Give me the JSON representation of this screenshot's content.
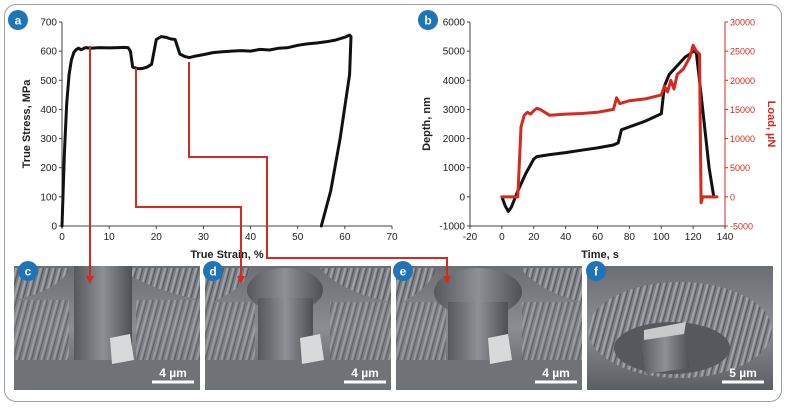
{
  "panels": {
    "a": {
      "label": "a"
    },
    "b": {
      "label": "b"
    },
    "c": {
      "label": "c",
      "scale_bar": "4 µm"
    },
    "d": {
      "label": "d",
      "scale_bar": "4 µm"
    },
    "e": {
      "label": "e",
      "scale_bar": "4 µm"
    },
    "f": {
      "label": "f",
      "scale_bar": "5 µm"
    }
  },
  "colors": {
    "badge": "#1f73b7",
    "load": "#d42a1f",
    "depth": "#111111",
    "arrow": "#d42a1f"
  },
  "chart_data": [
    {
      "type": "line",
      "panel": "a",
      "xlabel": "True Strain, %",
      "ylabel": "True Stress, MPa",
      "xlim": [
        0,
        70
      ],
      "ylim": [
        0,
        700
      ],
      "xticks": [
        0,
        10,
        20,
        30,
        40,
        50,
        60,
        70
      ],
      "yticks": [
        0,
        100,
        200,
        300,
        400,
        500,
        600,
        700
      ],
      "grid": false,
      "series": [
        {
          "color": "#111111",
          "x": [
            0,
            0.5,
            1,
            1.5,
            2,
            2.5,
            3,
            3.5,
            4,
            5,
            6,
            8,
            10,
            12,
            13,
            14,
            14.5,
            15,
            16,
            17,
            18,
            19,
            20,
            21,
            22,
            23,
            24,
            25,
            26,
            27,
            28,
            30,
            32,
            34,
            36,
            38,
            40,
            42,
            44,
            46,
            48,
            50,
            52,
            54,
            56,
            58,
            60,
            61,
            61.3,
            61,
            59,
            57,
            55
          ],
          "y": [
            0,
            250,
            420,
            520,
            570,
            595,
            605,
            610,
            605,
            612,
            610,
            612,
            611,
            612,
            613,
            612,
            600,
            545,
            540,
            540,
            545,
            555,
            640,
            650,
            648,
            642,
            640,
            590,
            582,
            578,
            582,
            588,
            595,
            598,
            600,
            602,
            600,
            606,
            604,
            610,
            612,
            620,
            625,
            628,
            632,
            638,
            648,
            655,
            650,
            520,
            300,
            120,
            0
          ]
        }
      ]
    },
    {
      "type": "line",
      "panel": "b",
      "xlabel": "Time, s",
      "ylabel": "Depth, nm",
      "y2label": "Load, µN",
      "xlim": [
        -20,
        140
      ],
      "ylim": [
        -1000,
        6000
      ],
      "y2lim": [
        -5000,
        30000
      ],
      "xticks": [
        -20,
        0,
        20,
        40,
        60,
        80,
        100,
        120,
        140
      ],
      "yticks": [
        -1000,
        0,
        1000,
        2000,
        3000,
        4000,
        5000,
        6000
      ],
      "y2ticks": [
        -5000,
        0,
        5000,
        10000,
        15000,
        20000,
        25000,
        30000
      ],
      "grid": false,
      "series": [
        {
          "axis": "left",
          "color": "#111111",
          "x": [
            0,
            2,
            4,
            6,
            10,
            15,
            20,
            22,
            30,
            40,
            50,
            60,
            70,
            73,
            75,
            80,
            90,
            100,
            102,
            105,
            110,
            115,
            118,
            120,
            122,
            124,
            126,
            128,
            130,
            133
          ],
          "y": [
            0,
            -300,
            -500,
            -350,
            200,
            800,
            1300,
            1380,
            1450,
            1520,
            1600,
            1680,
            1780,
            1850,
            2300,
            2400,
            2600,
            2850,
            3800,
            4200,
            4500,
            4800,
            4900,
            5000,
            4950,
            4000,
            3000,
            2000,
            1000,
            0
          ]
        },
        {
          "axis": "right",
          "color": "#d42a1f",
          "x": [
            0,
            2,
            4,
            6,
            8,
            10,
            12,
            14,
            16,
            18,
            20,
            22,
            24,
            30,
            40,
            50,
            60,
            70,
            72,
            74,
            80,
            90,
            100,
            102,
            104,
            106,
            108,
            110,
            114,
            118,
            120,
            122,
            124,
            125,
            126,
            130,
            135
          ],
          "y": [
            0,
            0,
            0,
            0,
            0,
            0,
            12000,
            14000,
            14500,
            14200,
            14800,
            15200,
            15000,
            14000,
            14200,
            14300,
            14500,
            15000,
            17000,
            16000,
            16500,
            16800,
            17500,
            19000,
            18000,
            20000,
            18500,
            21000,
            22000,
            24000,
            26000,
            25000,
            24500,
            -1000,
            0,
            0,
            0
          ]
        }
      ]
    }
  ]
}
